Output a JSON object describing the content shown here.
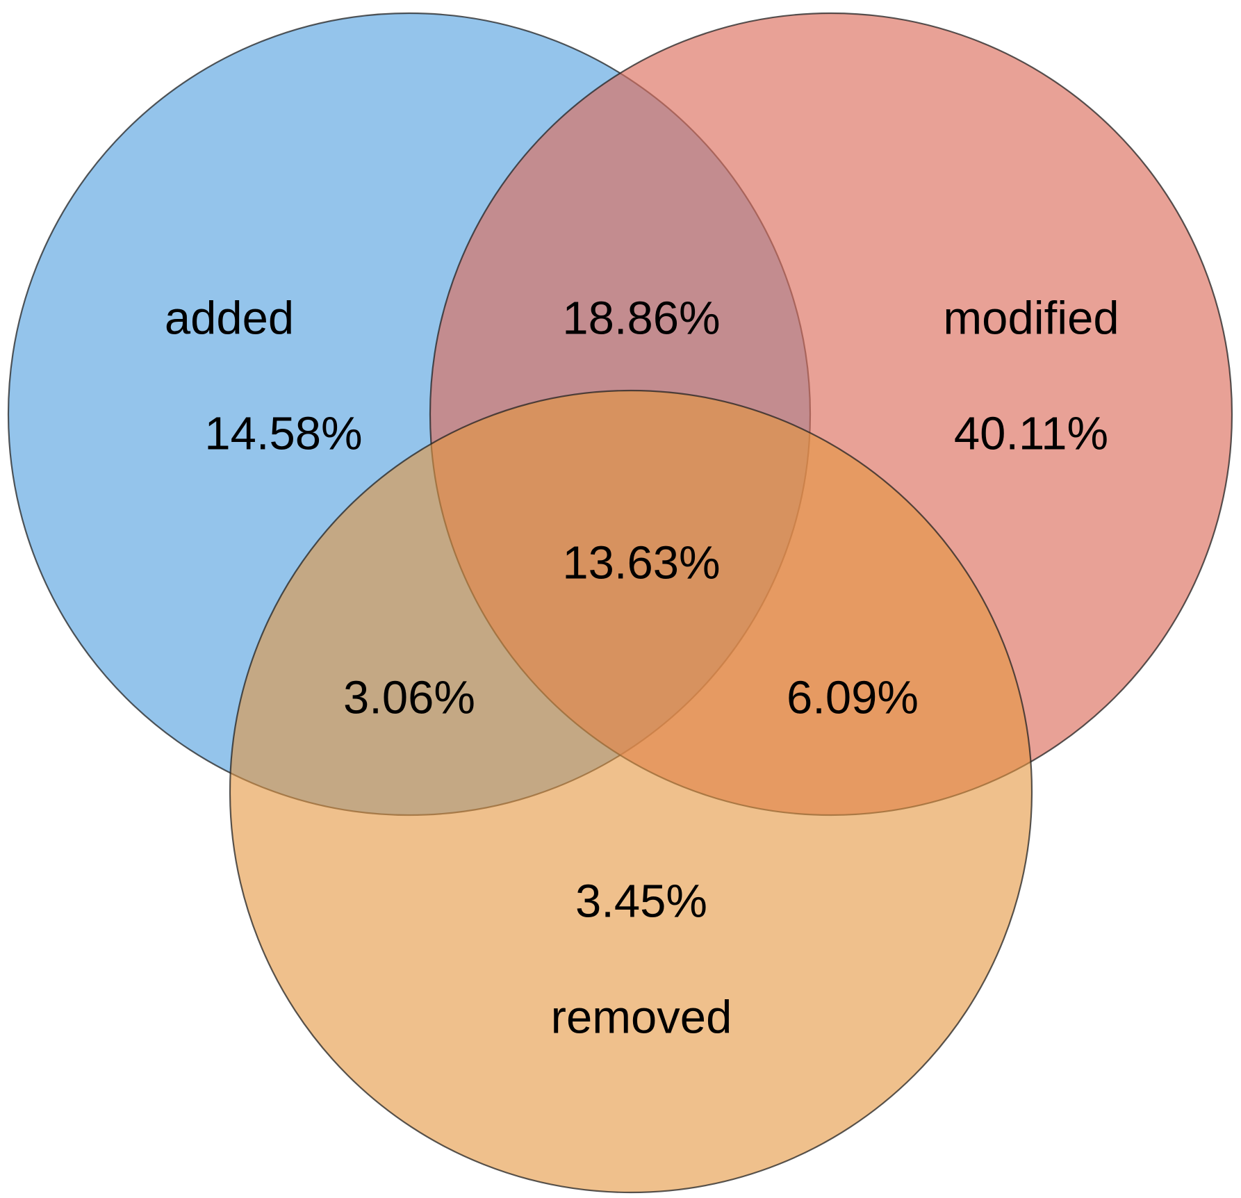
{
  "colors": {
    "added": "#5AA4E0",
    "modified": "#DB6F5E",
    "removed": "#E4963F",
    "outline": "#222222",
    "text": "#000000",
    "background": "#FFFFFF"
  },
  "chart_data": {
    "type": "venn",
    "sets": [
      "added",
      "modified",
      "removed"
    ],
    "set_labels": {
      "added": "added",
      "modified": "modified",
      "removed": "removed"
    },
    "regions": [
      {
        "sets": [
          "added"
        ],
        "label": "14.58%",
        "value": 14.58
      },
      {
        "sets": [
          "modified"
        ],
        "label": "40.11%",
        "value": 40.11
      },
      {
        "sets": [
          "removed"
        ],
        "label": "3.45%",
        "value": 3.45
      },
      {
        "sets": [
          "added",
          "modified"
        ],
        "label": "18.86%",
        "value": 18.86
      },
      {
        "sets": [
          "added",
          "removed"
        ],
        "label": "3.06%",
        "value": 3.06
      },
      {
        "sets": [
          "modified",
          "removed"
        ],
        "label": "6.09%",
        "value": 6.09
      },
      {
        "sets": [
          "added",
          "modified",
          "removed"
        ],
        "label": "13.63%",
        "value": 13.63
      }
    ]
  }
}
